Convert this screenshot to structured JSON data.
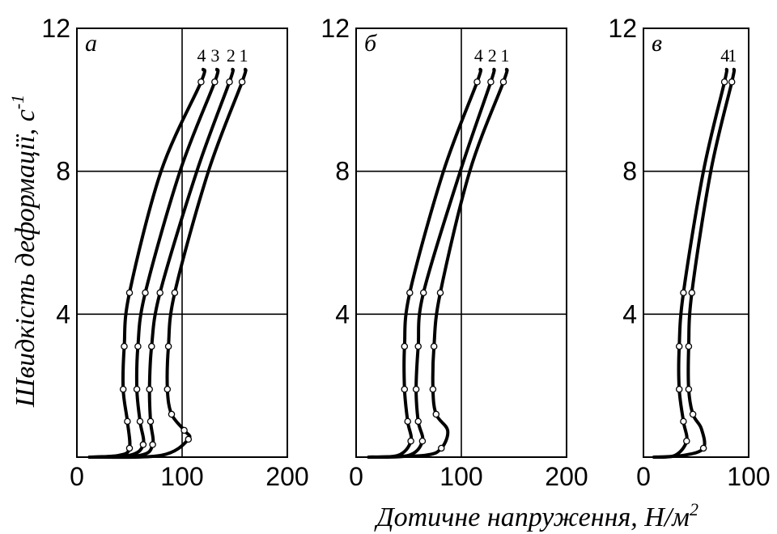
{
  "figure": {
    "ylabel": "Швидкість деформації, с",
    "ylabel_sup": "-1",
    "xlabel": "Дотичне напруження, Н/м",
    "xlabel_sup": "2"
  },
  "chart_data": [
    {
      "type": "line",
      "panel_letter": "a",
      "xlim": [
        0,
        200
      ],
      "ylim": [
        0,
        12
      ],
      "x_ticks": [
        "0",
        "100",
        "200"
      ],
      "y_ticks": [
        "4",
        "8",
        "12"
      ],
      "grid": {
        "x": [
          100
        ],
        "y": [
          4,
          8
        ]
      },
      "series": [
        {
          "name": "4",
          "points": [
            [
              12,
              0
            ],
            [
              40,
              0.05
            ],
            [
              50,
              0.25
            ],
            [
              48,
              1.0
            ],
            [
              44,
              1.9
            ],
            [
              45,
              3.1
            ],
            [
              50,
              4.6
            ],
            [
              80,
              8.0
            ],
            [
              118,
              10.5
            ],
            [
              120,
              10.85
            ]
          ],
          "markers": [
            [
              50,
              0.25
            ],
            [
              48,
              1.0
            ],
            [
              44,
              1.9
            ],
            [
              45,
              3.1
            ],
            [
              50,
              4.6
            ],
            [
              118,
              10.5
            ]
          ]
        },
        {
          "name": "3",
          "points": [
            [
              12,
              0
            ],
            [
              50,
              0.05
            ],
            [
              63,
              0.35
            ],
            [
              60,
              1.0
            ],
            [
              57,
              1.9
            ],
            [
              58,
              3.1
            ],
            [
              65,
              4.6
            ],
            [
              98,
              8.0
            ],
            [
              131,
              10.5
            ],
            [
              133,
              10.85
            ]
          ],
          "markers": [
            [
              63,
              0.35
            ],
            [
              60,
              1.0
            ],
            [
              57,
              1.9
            ],
            [
              58,
              3.1
            ],
            [
              65,
              4.6
            ],
            [
              131,
              10.5
            ]
          ]
        },
        {
          "name": "2",
          "points": [
            [
              12,
              0
            ],
            [
              60,
              0.05
            ],
            [
              72,
              0.35
            ],
            [
              70,
              1.0
            ],
            [
              69,
              1.9
            ],
            [
              71,
              3.1
            ],
            [
              79,
              4.6
            ],
            [
              114,
              8.0
            ],
            [
              145,
              10.5
            ],
            [
              148,
              10.85
            ]
          ],
          "markers": [
            [
              72,
              0.35
            ],
            [
              70,
              1.0
            ],
            [
              69,
              1.9
            ],
            [
              71,
              3.1
            ],
            [
              79,
              4.6
            ],
            [
              145,
              10.5
            ]
          ]
        },
        {
          "name": "1",
          "points": [
            [
              12,
              0
            ],
            [
              80,
              0.05
            ],
            [
              106,
              0.5
            ],
            [
              102,
              0.75
            ],
            [
              90,
              1.2
            ],
            [
              86,
              1.9
            ],
            [
              87,
              3.1
            ],
            [
              93,
              4.6
            ],
            [
              125,
              8.0
            ],
            [
              157,
              10.5
            ],
            [
              160,
              10.85
            ]
          ],
          "markers": [
            [
              106,
              0.5
            ],
            [
              102,
              0.75
            ],
            [
              90,
              1.2
            ],
            [
              86,
              1.9
            ],
            [
              87,
              3.1
            ],
            [
              93,
              4.6
            ],
            [
              157,
              10.5
            ]
          ]
        }
      ]
    },
    {
      "type": "line",
      "panel_letter": "б",
      "xlim": [
        0,
        200
      ],
      "ylim": [
        0,
        12
      ],
      "x_ticks": [
        "0",
        "100",
        "200"
      ],
      "y_ticks": [
        "4",
        "8",
        "12"
      ],
      "grid": {
        "x": [
          100
        ],
        "y": [
          4,
          8
        ]
      },
      "series": [
        {
          "name": "4",
          "points": [
            [
              12,
              0
            ],
            [
              40,
              0.05
            ],
            [
              52,
              0.45
            ],
            [
              49,
              1.0
            ],
            [
              46,
              1.9
            ],
            [
              46,
              3.1
            ],
            [
              51,
              4.6
            ],
            [
              83,
              8.0
            ],
            [
              115,
              10.5
            ],
            [
              118,
              10.85
            ]
          ],
          "markers": [
            [
              52,
              0.45
            ],
            [
              49,
              1.0
            ],
            [
              46,
              1.9
            ],
            [
              46,
              3.1
            ],
            [
              51,
              4.6
            ],
            [
              115,
              10.5
            ]
          ]
        },
        {
          "name": "2",
          "points": [
            [
              12,
              0
            ],
            [
              50,
              0.05
            ],
            [
              63,
              0.45
            ],
            [
              59,
              1.0
            ],
            [
              57,
              1.9
            ],
            [
              59,
              3.1
            ],
            [
              64,
              4.6
            ],
            [
              99,
              8.0
            ],
            [
              128,
              10.5
            ],
            [
              131,
              10.85
            ]
          ],
          "markers": [
            [
              63,
              0.45
            ],
            [
              59,
              1.0
            ],
            [
              57,
              1.9
            ],
            [
              59,
              3.1
            ],
            [
              64,
              4.6
            ],
            [
              128,
              10.5
            ]
          ]
        },
        {
          "name": "1",
          "points": [
            [
              12,
              0
            ],
            [
              65,
              0.05
            ],
            [
              81,
              0.25
            ],
            [
              87,
              0.75
            ],
            [
              76,
              1.2
            ],
            [
              73,
              1.9
            ],
            [
              74,
              3.1
            ],
            [
              80,
              4.6
            ],
            [
              108,
              8.0
            ],
            [
              140,
              10.5
            ],
            [
              143,
              10.85
            ]
          ],
          "markers": [
            [
              81,
              0.25
            ],
            [
              76,
              1.2
            ],
            [
              73,
              1.9
            ],
            [
              74,
              3.1
            ],
            [
              80,
              4.6
            ],
            [
              140,
              10.5
            ]
          ]
        }
      ]
    },
    {
      "type": "line",
      "panel_letter": "в",
      "xlim": [
        0,
        100
      ],
      "ylim": [
        0,
        12
      ],
      "x_ticks": [
        "0",
        "100"
      ],
      "y_ticks": [
        "4",
        "8",
        "12"
      ],
      "grid": {
        "x": [],
        "y": [
          4,
          8
        ]
      },
      "series": [
        {
          "name": "4",
          "points": [
            [
              10,
              0
            ],
            [
              30,
              0.05
            ],
            [
              41,
              0.45
            ],
            [
              38,
              1.0
            ],
            [
              34,
              1.9
            ],
            [
              34,
              3.1
            ],
            [
              38,
              4.6
            ],
            [
              57,
              8.0
            ],
            [
              77,
              10.5
            ],
            [
              79,
              10.85
            ]
          ],
          "markers": [
            [
              41,
              0.45
            ],
            [
              38,
              1.0
            ],
            [
              34,
              1.9
            ],
            [
              34,
              3.1
            ],
            [
              38,
              4.6
            ],
            [
              77,
              10.5
            ]
          ]
        },
        {
          "name": "1",
          "points": [
            [
              10,
              0
            ],
            [
              38,
              0.05
            ],
            [
              57,
              0.25
            ],
            [
              55,
              0.8
            ],
            [
              47,
              1.2
            ],
            [
              43,
              1.9
            ],
            [
              43,
              3.1
            ],
            [
              46,
              4.6
            ],
            [
              64,
              8.0
            ],
            [
              84,
              10.5
            ],
            [
              86,
              10.85
            ]
          ],
          "markers": [
            [
              57,
              0.25
            ],
            [
              47,
              1.2
            ],
            [
              43,
              1.9
            ],
            [
              43,
              3.1
            ],
            [
              46,
              4.6
            ],
            [
              84,
              10.5
            ]
          ]
        }
      ]
    }
  ]
}
